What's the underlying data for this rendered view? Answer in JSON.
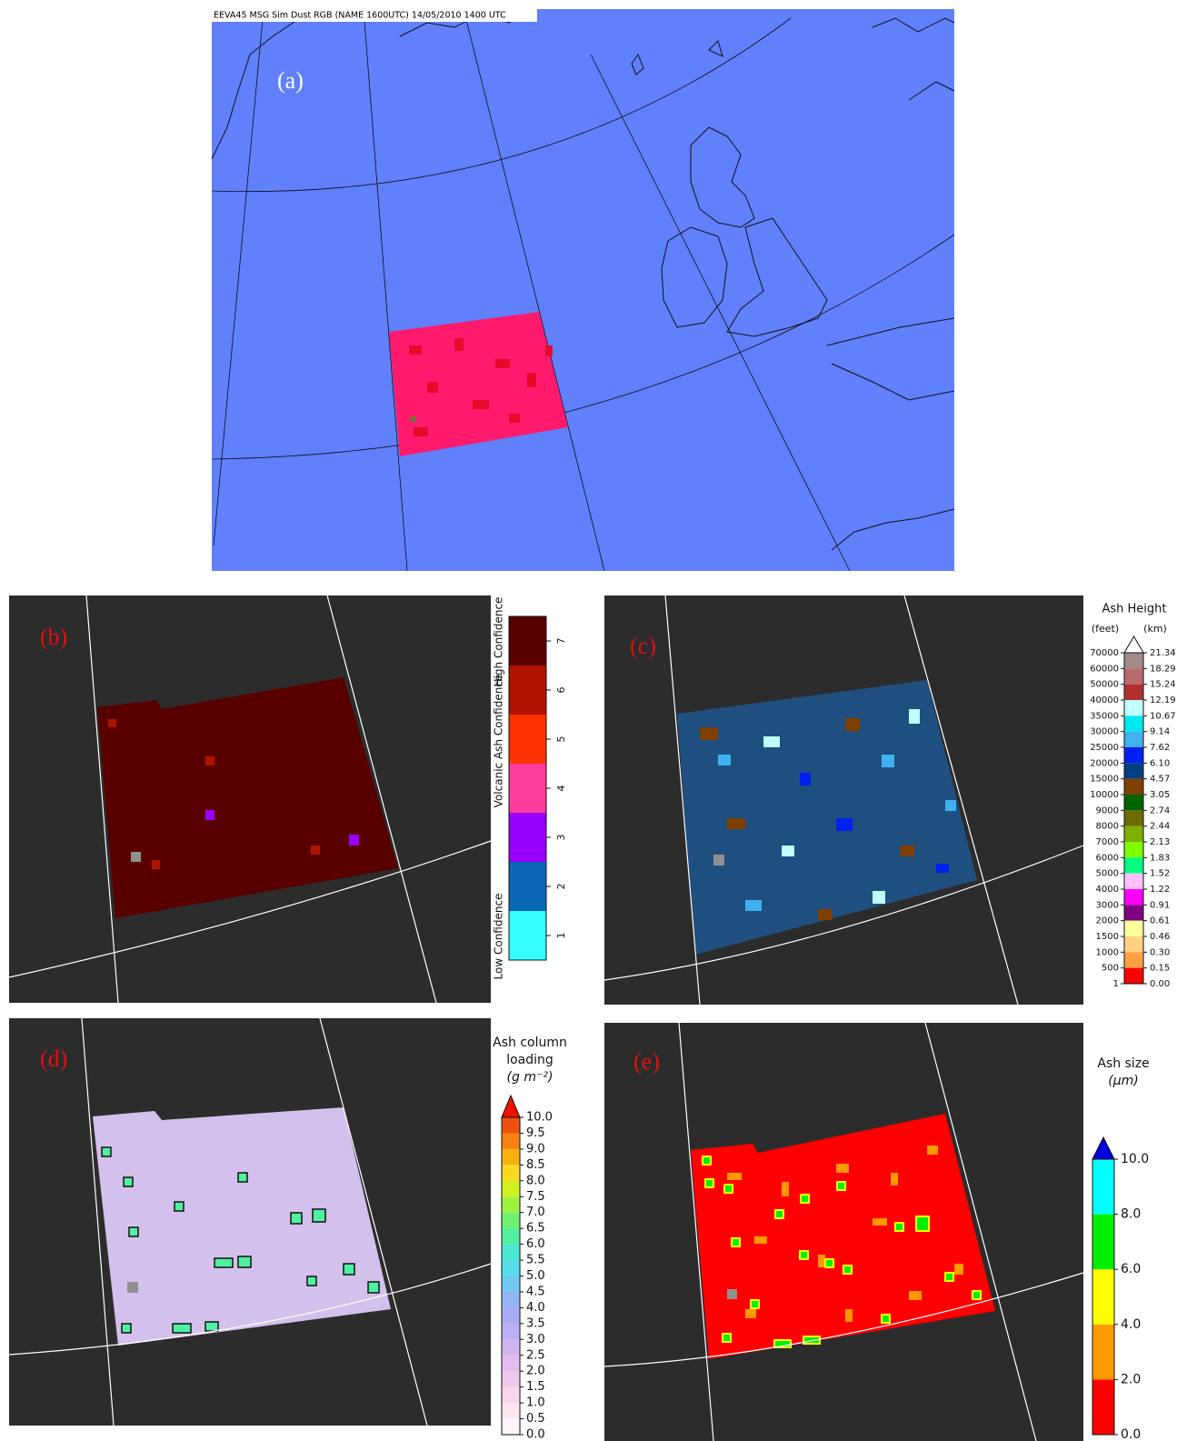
{
  "panel_a": {
    "label": "(a)",
    "header": "EEVA45 MSG Sim Dust RGB (NAME 1600UTC) 14/05/2010 1400 UTC"
  },
  "panel_b": {
    "label": "(b)",
    "colorbar": {
      "title": "Volcanic Ash Confidence",
      "low_label": "Low Confidence",
      "high_label": "High Confidence",
      "ticks": [
        1,
        2,
        3,
        4,
        5,
        6,
        7
      ],
      "colors": [
        "#33ffff",
        "#0a66b8",
        "#9a00ff",
        "#ff3c9c",
        "#ff3300",
        "#b01400",
        "#580000"
      ]
    }
  },
  "panel_c": {
    "label": "(c)",
    "colorbar": {
      "title": "Ash Height",
      "left_unit": "(feet)",
      "right_unit": "(km)",
      "feet_ticks": [
        70000,
        60000,
        50000,
        40000,
        35000,
        30000,
        25000,
        20000,
        15000,
        10000,
        9000,
        8000,
        7000,
        6000,
        5000,
        4000,
        3000,
        2000,
        1500,
        1000,
        500,
        1
      ],
      "km_ticks": [
        21.34,
        18.29,
        15.24,
        12.19,
        10.67,
        9.14,
        7.62,
        {
          "value": 6.1,
          "label": "6.10"
        },
        4.57,
        3.05,
        2.74,
        2.44,
        2.13,
        1.83,
        1.52,
        1.22,
        0.91,
        0.61,
        0.46,
        {
          "value": 0.3,
          "label": "0.30"
        },
        0.15,
        {
          "value": 0,
          "label": "0.00"
        }
      ],
      "colors": [
        "#a08a8a",
        "#b86a6a",
        "#b03030",
        "#c0ffff",
        "#00e8f0",
        "#40b0f0",
        "#0020f0",
        "#003f7f",
        "#7f3f00",
        "#006400",
        "#6b6b00",
        "#7fb000",
        "#7fff00",
        "#00ff7f",
        "#ffbfff",
        "#ff00ff",
        "#7f007f",
        "#ffff99",
        "#ffd080",
        "#ffa040",
        "#ff0000"
      ],
      "extend_color": "#ffffff"
    }
  },
  "panel_d": {
    "label": "(d)",
    "colorbar": {
      "title_lines": [
        "Ash column",
        "loading",
        "(g m⁻²)"
      ],
      "ticks": [
        {
          "value": 0,
          "label": "0.0"
        },
        0.5,
        {
          "value": 1,
          "label": "1.0"
        },
        1.5,
        {
          "value": 2,
          "label": "2.0"
        },
        2.5,
        {
          "value": 3,
          "label": "3.0"
        },
        3.5,
        {
          "value": 4,
          "label": "4.0"
        },
        4.5,
        {
          "value": 5,
          "label": "5.0"
        },
        5.5,
        {
          "value": 6,
          "label": "6.0"
        },
        6.5,
        {
          "value": 7,
          "label": "7.0"
        },
        7.5,
        {
          "value": 8,
          "label": "8.0"
        },
        8.5,
        {
          "value": 9,
          "label": "9.0"
        },
        9.5,
        {
          "value": 10,
          "label": "10.0"
        }
      ],
      "colors": [
        "#fff4f8",
        "#fde6f2",
        "#f8d6ee",
        "#efc8ec",
        "#e2bcee",
        "#d0b4f0",
        "#bcaef2",
        "#a8aaf4",
        "#90b4f4",
        "#70c8f0",
        "#58dcec",
        "#4ae8d0",
        "#50f0a0",
        "#70f070",
        "#a0f040",
        "#d0f020",
        "#f8d820",
        "#f8b010",
        "#f88010",
        "#f05010"
      ],
      "extend_color": "#ee1100"
    }
  },
  "panel_e": {
    "label": "(e)",
    "colorbar": {
      "title_lines": [
        "Ash size",
        "(μm)"
      ],
      "ticks": [
        {
          "value": 0,
          "label": "0.0"
        },
        {
          "value": 2,
          "label": "2.0"
        },
        {
          "value": 4,
          "label": "4.0"
        },
        {
          "value": 6,
          "label": "6.0"
        },
        {
          "value": 8,
          "label": "8.0"
        },
        {
          "value": 10,
          "label": "10.0"
        }
      ],
      "colors": [
        "#ff0000",
        "#ff9900",
        "#ffff00",
        "#00ee00",
        "#00ffff"
      ],
      "extend_color": "#0000dd"
    }
  }
}
